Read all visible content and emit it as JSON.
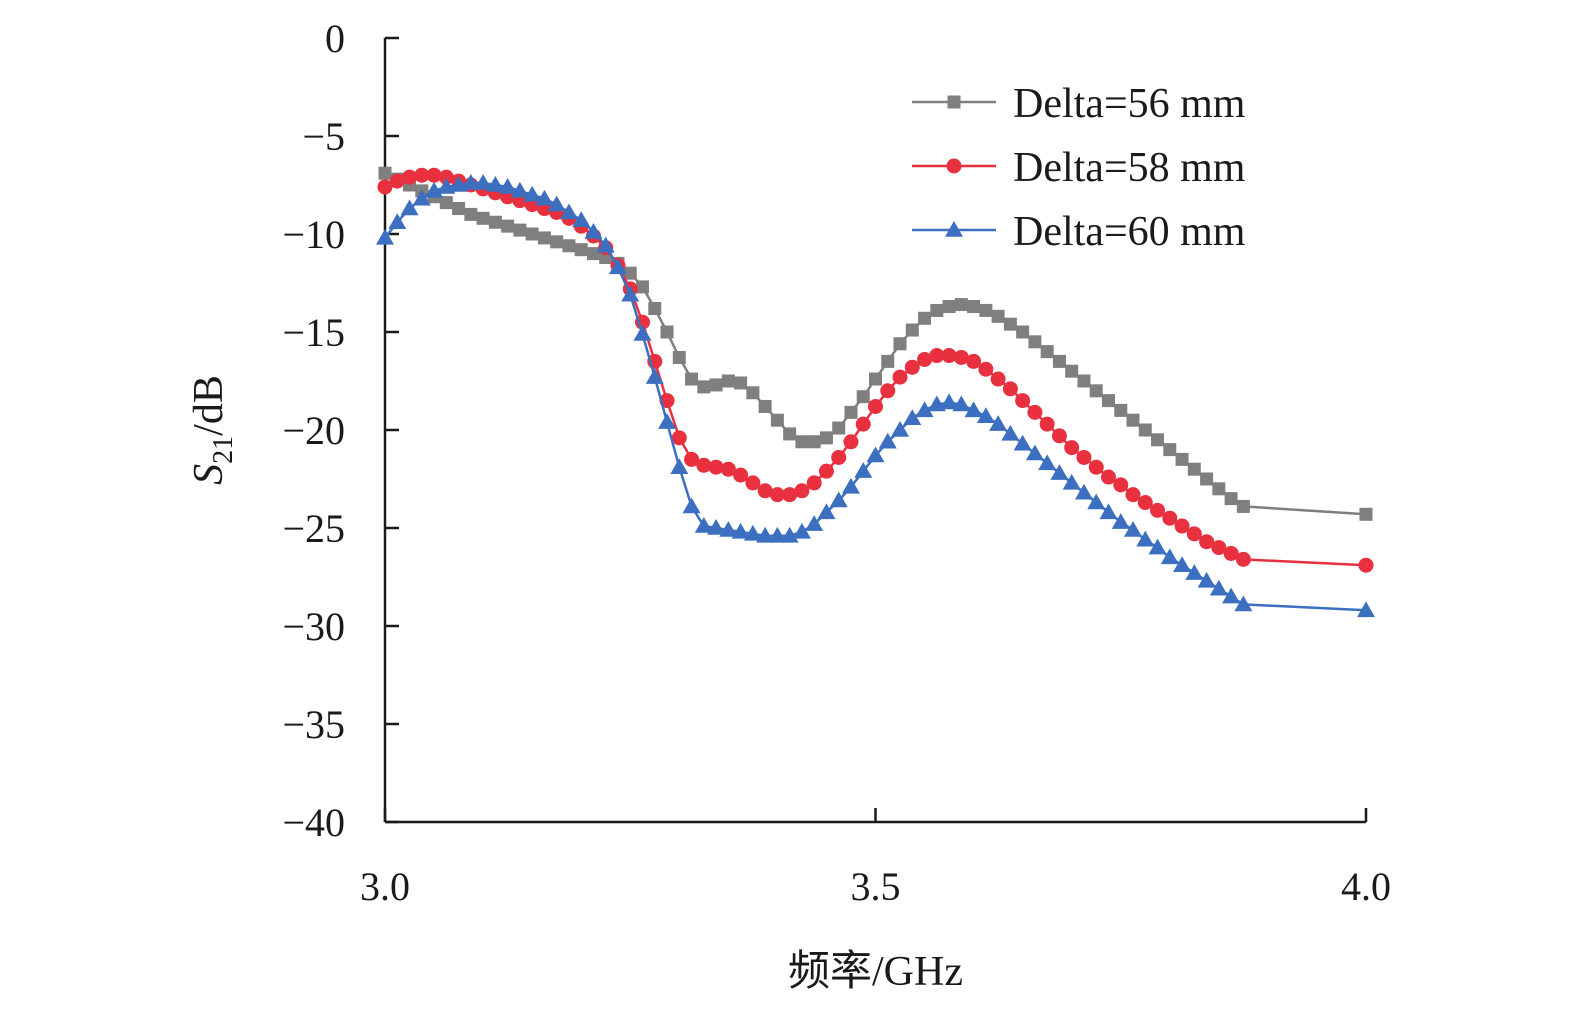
{
  "chart_data": {
    "type": "line",
    "title": "",
    "xlabel": "频率/GHz",
    "ylabel": {
      "base": "S",
      "subscript": "21",
      "unit": "/dB"
    },
    "xlim": [
      3.0,
      4.0
    ],
    "ylim": [
      -40,
      0
    ],
    "x_ticks": [
      "3.0",
      "3.5",
      "4.0"
    ],
    "y_ticks": [
      "0",
      "−5",
      "−10",
      "−15",
      "−20",
      "−25",
      "−30",
      "−35",
      "−40"
    ],
    "grid": false,
    "legend_position": "top-right",
    "x_start": 3.0,
    "x_step": 0.0125,
    "series": [
      {
        "name": "Delta=56 mm",
        "color": "#7f7f7f",
        "marker": "square",
        "values": [
          -6.9,
          -7.2,
          -7.5,
          -7.8,
          -8.1,
          -8.4,
          -8.7,
          -9.0,
          -9.2,
          -9.4,
          -9.6,
          -9.8,
          -10.0,
          -10.2,
          -10.4,
          -10.6,
          -10.8,
          -11.0,
          -11.2,
          -11.5,
          -12.0,
          -12.7,
          -13.8,
          -15.0,
          -16.3,
          -17.4,
          -17.8,
          -17.7,
          -17.5,
          -17.6,
          -18.1,
          -18.8,
          -19.5,
          -20.2,
          -20.6,
          -20.6,
          -20.4,
          -19.9,
          -19.1,
          -18.3,
          -17.4,
          -16.5,
          -15.6,
          -14.9,
          -14.3,
          -13.9,
          -13.7,
          -13.6,
          -13.7,
          -13.9,
          -14.2,
          -14.6,
          -15.0,
          -15.5,
          -16.0,
          -16.5,
          -17.0,
          -17.5,
          -18.0,
          -18.5,
          -19.0,
          -19.5,
          -20.0,
          -20.5,
          -21.0,
          -21.5,
          -22.0,
          -22.5,
          -23.0,
          -23.5,
          -23.9,
          -24.3
        ]
      },
      {
        "name": "Delta=58 mm",
        "color": "#e8303f",
        "marker": "circle",
        "values": [
          -7.6,
          -7.3,
          -7.1,
          -7.0,
          -7.0,
          -7.1,
          -7.3,
          -7.5,
          -7.7,
          -7.9,
          -8.1,
          -8.3,
          -8.5,
          -8.7,
          -8.9,
          -9.2,
          -9.6,
          -10.1,
          -10.7,
          -11.6,
          -12.8,
          -14.5,
          -16.5,
          -18.5,
          -20.4,
          -21.5,
          -21.8,
          -21.9,
          -22.0,
          -22.3,
          -22.7,
          -23.1,
          -23.3,
          -23.3,
          -23.1,
          -22.7,
          -22.1,
          -21.4,
          -20.6,
          -19.7,
          -18.8,
          -18.0,
          -17.3,
          -16.8,
          -16.4,
          -16.2,
          -16.2,
          -16.3,
          -16.5,
          -16.9,
          -17.4,
          -17.9,
          -18.5,
          -19.1,
          -19.7,
          -20.3,
          -20.9,
          -21.4,
          -21.9,
          -22.4,
          -22.8,
          -23.3,
          -23.7,
          -24.1,
          -24.5,
          -24.9,
          -25.3,
          -25.7,
          -26.0,
          -26.3,
          -26.6,
          -26.9
        ]
      },
      {
        "name": "Delta=60 mm",
        "color": "#3c6fc0",
        "marker": "triangle",
        "values": [
          -10.2,
          -9.4,
          -8.7,
          -8.2,
          -7.8,
          -7.6,
          -7.5,
          -7.4,
          -7.4,
          -7.5,
          -7.6,
          -7.8,
          -8.0,
          -8.2,
          -8.5,
          -8.9,
          -9.3,
          -9.9,
          -10.6,
          -11.7,
          -13.1,
          -15.1,
          -17.3,
          -19.6,
          -21.9,
          -23.9,
          -24.9,
          -25.0,
          -25.1,
          -25.2,
          -25.3,
          -25.4,
          -25.4,
          -25.4,
          -25.2,
          -24.8,
          -24.2,
          -23.6,
          -22.9,
          -22.1,
          -21.3,
          -20.6,
          -20.0,
          -19.4,
          -19.0,
          -18.7,
          -18.6,
          -18.7,
          -19.0,
          -19.3,
          -19.7,
          -20.2,
          -20.7,
          -21.2,
          -21.7,
          -22.2,
          -22.7,
          -23.2,
          -23.7,
          -24.2,
          -24.7,
          -25.1,
          -25.6,
          -26.0,
          -26.5,
          -26.9,
          -27.3,
          -27.7,
          -28.1,
          -28.5,
          -28.9,
          -29.2
        ]
      }
    ]
  }
}
